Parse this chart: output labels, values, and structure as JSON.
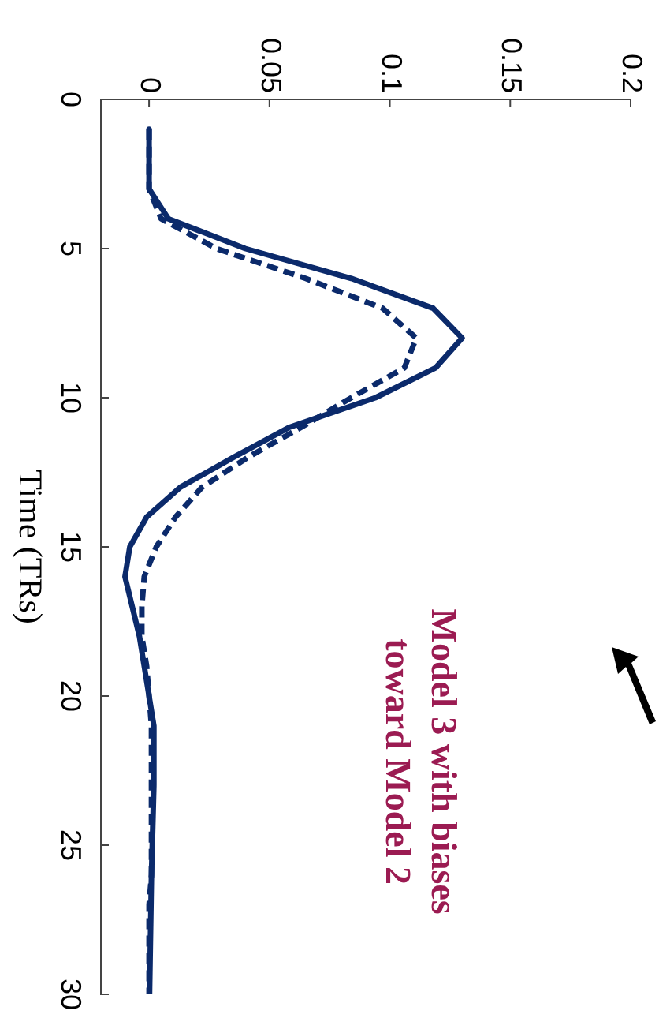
{
  "chart_data": {
    "type": "line",
    "ylabel": "Time (TRs)",
    "series": [
      {
        "color": "#0b2a6b",
        "line_style": "solid",
        "x": [
          0,
          0,
          0.008,
          0.04,
          0.084,
          0.118,
          0.13,
          0.119,
          0.094,
          0.058,
          0.035,
          0.013,
          -0.001,
          -0.008,
          -0.01,
          -0.007,
          -0.004,
          -0.002,
          0,
          0.002,
          0.002,
          0.001,
          0.0002
        ],
        "values": [
          1,
          3,
          4,
          5,
          6,
          7,
          8,
          9,
          10,
          11,
          12,
          13,
          14,
          15,
          16,
          17,
          18,
          19,
          20,
          21,
          23,
          26,
          30
        ]
      },
      {
        "color": "#0b2a6b",
        "line_style": "dashed",
        "x": [
          0,
          0,
          0.005,
          0.028,
          0.065,
          0.097,
          0.111,
          0.106,
          0.084,
          0.063,
          0.041,
          0.022,
          0.011,
          0.003,
          -0.002,
          -0.003,
          -0.003,
          -0.001,
          0,
          0.001,
          0.001,
          0,
          0
        ],
        "values": [
          1,
          3,
          4,
          5,
          6,
          7,
          8,
          9,
          10,
          11,
          12,
          13,
          14,
          15,
          16,
          17,
          18,
          19,
          20,
          21,
          26,
          27,
          30
        ]
      }
    ],
    "xlim": [
      -0.02,
      0.2
    ],
    "xticks": [
      0,
      0.05,
      0.1,
      0.15,
      0.2
    ],
    "ylim": [
      30,
      0
    ],
    "yticks": [
      0,
      5,
      10,
      15,
      20,
      25,
      30
    ],
    "grid": false,
    "legend": false,
    "marker": "none",
    "annotations": [
      "Model 3 with biases toward Model 2"
    ]
  }
}
